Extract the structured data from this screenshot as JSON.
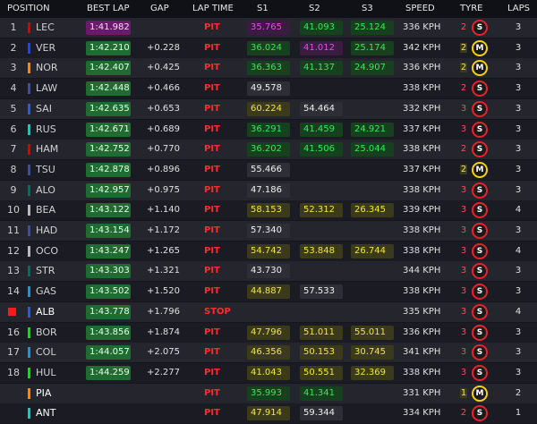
{
  "header": {
    "position": "POSITION",
    "best_lap": "BEST LAP",
    "gap": "GAP",
    "lap_time": "LAP TIME",
    "s1": "S1",
    "s2": "S2",
    "s3": "S3",
    "speed": "SPEED",
    "tyre": "TYRE",
    "laps": "LAPS"
  },
  "rows": [
    {
      "pos": "1",
      "driver": "LEC",
      "team_color": "#dc0000",
      "best_lap": "1:41.982",
      "best_style": "purple",
      "gap": "",
      "lap_time": "PIT",
      "s1": "35.765",
      "s1_c": "purple-s",
      "s2": "41.093",
      "s2_c": "green",
      "s3": "25.124",
      "s3_c": "green",
      "speed": "336 KPH",
      "tyre_age": "2",
      "tyre": "S",
      "tyre_type": "soft",
      "laps": "3"
    },
    {
      "pos": "2",
      "driver": "VER",
      "team_color": "#1e41ff",
      "best_lap": "1:42.210",
      "best_style": "green",
      "gap": "+0.228",
      "lap_time": "PIT",
      "s1": "36.024",
      "s1_c": "green",
      "s2": "41.012",
      "s2_c": "purple-s",
      "s3": "25.174",
      "s3_c": "green",
      "speed": "342 KPH",
      "tyre_age": "2",
      "tyre": "M",
      "tyre_type": "medium",
      "laps": "3"
    },
    {
      "pos": "3",
      "driver": "NOR",
      "team_color": "#ff8700",
      "best_lap": "1:42.407",
      "best_style": "green",
      "gap": "+0.425",
      "lap_time": "PIT",
      "s1": "36.363",
      "s1_c": "green",
      "s2": "41.137",
      "s2_c": "green",
      "s3": "24.907",
      "s3_c": "green",
      "speed": "336 KPH",
      "tyre_age": "2",
      "tyre": "M",
      "tyre_type": "medium",
      "laps": "3"
    },
    {
      "pos": "4",
      "driver": "LAW",
      "team_color": "#3a4fa0",
      "best_lap": "1:42.448",
      "best_style": "green",
      "gap": "+0.466",
      "lap_time": "PIT",
      "s1": "49.578",
      "s1_c": "white-s",
      "s2": "",
      "s2_c": "",
      "s3": "",
      "s3_c": "",
      "speed": "338 KPH",
      "tyre_age": "2",
      "tyre": "S",
      "tyre_type": "soft",
      "laps": "3"
    },
    {
      "pos": "5",
      "driver": "SAI",
      "team_color": "#2c5bd6",
      "best_lap": "1:42.635",
      "best_style": "green",
      "gap": "+0.653",
      "lap_time": "PIT",
      "s1": "60.224",
      "s1_c": "yellow",
      "s2": "54.464",
      "s2_c": "white-s",
      "s3": "",
      "s3_c": "",
      "speed": "332 KPH",
      "tyre_age": "3",
      "tyre": "S",
      "tyre_type": "soft",
      "laps": "3"
    },
    {
      "pos": "6",
      "driver": "RUS",
      "team_color": "#00d2be",
      "best_lap": "1:42.671",
      "best_style": "green",
      "gap": "+0.689",
      "lap_time": "PIT",
      "s1": "36.291",
      "s1_c": "green",
      "s2": "41.459",
      "s2_c": "green",
      "s3": "24.921",
      "s3_c": "green",
      "speed": "337 KPH",
      "tyre_age": "3",
      "tyre": "S",
      "tyre_type": "soft",
      "laps": "3"
    },
    {
      "pos": "7",
      "driver": "HAM",
      "team_color": "#dc0000",
      "best_lap": "1:42.752",
      "best_style": "green",
      "gap": "+0.770",
      "lap_time": "PIT",
      "s1": "36.202",
      "s1_c": "green",
      "s2": "41.506",
      "s2_c": "green",
      "s3": "25.044",
      "s3_c": "green",
      "speed": "338 KPH",
      "tyre_age": "2",
      "tyre": "S",
      "tyre_type": "soft",
      "laps": "3"
    },
    {
      "pos": "8",
      "driver": "TSU",
      "team_color": "#3a4fa0",
      "best_lap": "1:42.878",
      "best_style": "green",
      "gap": "+0.896",
      "lap_time": "PIT",
      "s1": "55.466",
      "s1_c": "white-s",
      "s2": "",
      "s2_c": "",
      "s3": "",
      "s3_c": "",
      "speed": "337 KPH",
      "tyre_age": "2",
      "tyre": "M",
      "tyre_type": "medium",
      "laps": "3"
    },
    {
      "pos": "9",
      "driver": "ALO",
      "team_color": "#006f62",
      "best_lap": "1:42.957",
      "best_style": "green",
      "gap": "+0.975",
      "lap_time": "PIT",
      "s1": "47.186",
      "s1_c": "white-s",
      "s2": "",
      "s2_c": "",
      "s3": "",
      "s3_c": "",
      "speed": "338 KPH",
      "tyre_age": "3",
      "tyre": "S",
      "tyre_type": "soft",
      "laps": "3"
    },
    {
      "pos": "10",
      "driver": "BEA",
      "team_color": "#b6babd",
      "best_lap": "1:43.122",
      "best_style": "green",
      "gap": "+1.140",
      "lap_time": "PIT",
      "s1": "58.153",
      "s1_c": "yellow",
      "s2": "52.312",
      "s2_c": "yellow",
      "s3": "26.345",
      "s3_c": "yellow",
      "speed": "339 KPH",
      "tyre_age": "3",
      "tyre": "S",
      "tyre_type": "soft",
      "laps": "4"
    },
    {
      "pos": "11",
      "driver": "HAD",
      "team_color": "#3a4fa0",
      "best_lap": "1:43.154",
      "best_style": "green",
      "gap": "+1.172",
      "lap_time": "PIT",
      "s1": "57.340",
      "s1_c": "white-s",
      "s2": "",
      "s2_c": "",
      "s3": "",
      "s3_c": "",
      "speed": "338 KPH",
      "tyre_age": "3",
      "tyre": "S",
      "tyre_type": "soft",
      "laps": "3"
    },
    {
      "pos": "12",
      "driver": "OCO",
      "team_color": "#b6babd",
      "best_lap": "1:43.247",
      "best_style": "green",
      "gap": "+1.265",
      "lap_time": "PIT",
      "s1": "54.742",
      "s1_c": "yellow",
      "s2": "53.848",
      "s2_c": "yellow",
      "s3": "26.744",
      "s3_c": "yellow",
      "speed": "338 KPH",
      "tyre_age": "3",
      "tyre": "S",
      "tyre_type": "soft",
      "laps": "4"
    },
    {
      "pos": "13",
      "driver": "STR",
      "team_color": "#006f62",
      "best_lap": "1:43.303",
      "best_style": "green",
      "gap": "+1.321",
      "lap_time": "PIT",
      "s1": "43.730",
      "s1_c": "white-s",
      "s2": "",
      "s2_c": "",
      "s3": "",
      "s3_c": "",
      "speed": "344 KPH",
      "tyre_age": "3",
      "tyre": "S",
      "tyre_type": "soft",
      "laps": "3"
    },
    {
      "pos": "14",
      "driver": "GAS",
      "team_color": "#2293d1",
      "best_lap": "1:43.502",
      "best_style": "green",
      "gap": "+1.520",
      "lap_time": "PIT",
      "s1": "44.887",
      "s1_c": "yellow",
      "s2": "57.533",
      "s2_c": "white-s",
      "s3": "",
      "s3_c": "",
      "speed": "338 KPH",
      "tyre_age": "3",
      "tyre": "S",
      "tyre_type": "soft",
      "laps": "3"
    },
    {
      "pos": "",
      "stopped": true,
      "driver": "ALB",
      "team_color": "#2c5bd6",
      "best_lap": "1:43.778",
      "best_style": "green",
      "gap": "+1.796",
      "lap_time": "STOP",
      "s1": "",
      "s1_c": "",
      "s2": "",
      "s2_c": "",
      "s3": "",
      "s3_c": "",
      "speed": "335 KPH",
      "tyre_age": "3",
      "tyre": "S",
      "tyre_type": "soft",
      "laps": "4"
    },
    {
      "pos": "16",
      "driver": "BOR",
      "team_color": "#00e701",
      "best_lap": "1:43.856",
      "best_style": "green",
      "gap": "+1.874",
      "lap_time": "PIT",
      "s1": "47.796",
      "s1_c": "yellow",
      "s2": "51.011",
      "s2_c": "yellow",
      "s3": "55.011",
      "s3_c": "yellow",
      "speed": "336 KPH",
      "tyre_age": "3",
      "tyre": "S",
      "tyre_type": "soft",
      "laps": "3"
    },
    {
      "pos": "17",
      "driver": "COL",
      "team_color": "#2293d1",
      "best_lap": "1:44.057",
      "best_style": "green",
      "gap": "+2.075",
      "lap_time": "PIT",
      "s1": "46.356",
      "s1_c": "yellow",
      "s2": "50.153",
      "s2_c": "yellow",
      "s3": "30.745",
      "s3_c": "yellow",
      "speed": "341 KPH",
      "tyre_age": "3",
      "tyre": "S",
      "tyre_type": "soft",
      "laps": "3"
    },
    {
      "pos": "18",
      "driver": "HUL",
      "team_color": "#00e701",
      "best_lap": "1:44.259",
      "best_style": "green",
      "gap": "+2.277",
      "lap_time": "PIT",
      "s1": "41.043",
      "s1_c": "yellow",
      "s2": "50.551",
      "s2_c": "yellow",
      "s3": "32.369",
      "s3_c": "yellow",
      "speed": "338 KPH",
      "tyre_age": "3",
      "tyre": "S",
      "tyre_type": "soft",
      "laps": "3"
    },
    {
      "pos": "",
      "driver": "PIA",
      "team_color": "#ff8700",
      "best_lap": "",
      "best_style": "",
      "gap": "",
      "lap_time": "PIT",
      "s1": "35.993",
      "s1_c": "green",
      "s2": "41.341",
      "s2_c": "green",
      "s3": "",
      "s3_c": "",
      "speed": "331 KPH",
      "tyre_age": "1",
      "tyre": "M",
      "tyre_type": "medium",
      "laps": "2"
    },
    {
      "pos": "",
      "driver": "ANT",
      "team_color": "#00d2be",
      "best_lap": "",
      "best_style": "",
      "gap": "",
      "lap_time": "PIT",
      "s1": "47.914",
      "s1_c": "yellow",
      "s2": "59.344",
      "s2_c": "white-s",
      "s3": "",
      "s3_c": "",
      "speed": "334 KPH",
      "tyre_age": "2",
      "tyre": "S",
      "tyre_type": "soft",
      "laps": "1"
    }
  ]
}
